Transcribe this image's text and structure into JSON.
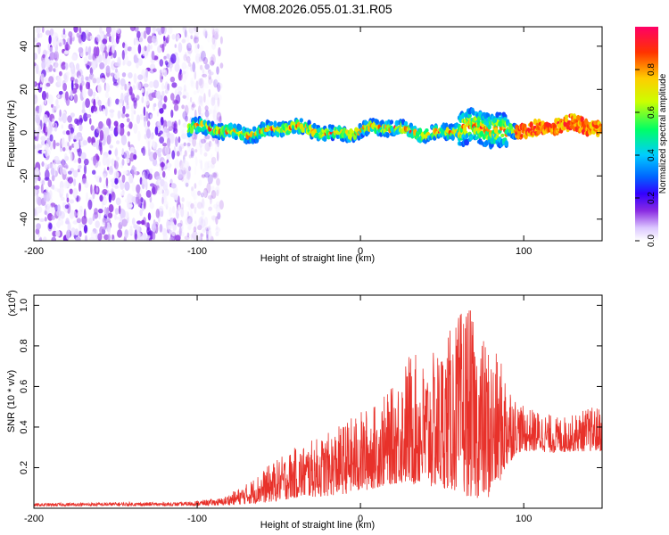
{
  "chart_data": [
    {
      "type": "heatmap",
      "title": "YM08.2026.055.01.31.R05",
      "xlabel": "Height of straight line (km)",
      "ylabel": "Frequency (Hz)",
      "xlim": [
        -200,
        148
      ],
      "ylim": [
        -50,
        49
      ],
      "xticks": [
        -200,
        -100,
        0,
        100
      ],
      "yticks": [
        -40,
        -20,
        0,
        20,
        40
      ],
      "colorbar": {
        "label": "Normalized spectral amplitude",
        "range": [
          0,
          1
        ],
        "ticks": [
          "0.0",
          "0.2",
          "0.4",
          "0.6",
          "0.8"
        ],
        "colors": [
          "#ffffff",
          "#dcc8ff",
          "#8a2be2",
          "#3300ff",
          "#0066ff",
          "#00ccff",
          "#00ff66",
          "#ccff00",
          "#ffcc00",
          "#ff3300",
          "#ff0066"
        ]
      },
      "regions": [
        {
          "name": "scattered noise",
          "x_range": [
            -200,
            -85
          ],
          "freq_range": [
            -50,
            49
          ],
          "amplitude_range": [
            0.02,
            0.25
          ]
        },
        {
          "name": "dominant band",
          "x_range": [
            -105,
            148
          ],
          "center_freq_hz": 1,
          "half_width_hz": 3,
          "amplitude_range": [
            0.3,
            1.0
          ]
        },
        {
          "name": "broadening",
          "x_range": [
            60,
            90
          ],
          "freq_range": [
            -12,
            20
          ]
        }
      ]
    },
    {
      "type": "line",
      "xlabel": "Height of straight line (km)",
      "ylabel": "SNR (10 * v/v)",
      "y_multiplier_label": "(x10",
      "y_multiplier_exp": "4",
      "y_multiplier_close": ")",
      "xlim": [
        -200,
        148
      ],
      "ylim": [
        0,
        1.05
      ],
      "xticks": [
        -200,
        -100,
        0,
        100
      ],
      "yticks": [
        0.2,
        0.4,
        0.6,
        0.8,
        1.0
      ],
      "series_color": "#e8312a",
      "series": [
        {
          "name": "SNR envelope (upper)",
          "x": [
            -200,
            -150,
            -110,
            -85,
            -70,
            -55,
            -40,
            -20,
            0,
            10,
            20,
            30,
            40,
            50,
            60,
            65,
            70,
            80,
            90,
            95,
            100,
            110,
            120,
            130,
            140,
            148
          ],
          "values": [
            0.025,
            0.03,
            0.03,
            0.05,
            0.12,
            0.22,
            0.3,
            0.37,
            0.48,
            0.52,
            0.6,
            0.78,
            0.72,
            0.82,
            0.95,
            1.05,
            0.9,
            0.8,
            0.68,
            0.55,
            0.5,
            0.48,
            0.45,
            0.46,
            0.5,
            0.5
          ]
        },
        {
          "name": "SNR envelope (lower)",
          "x": [
            -200,
            -150,
            -110,
            -85,
            -70,
            -55,
            -40,
            -20,
            0,
            10,
            20,
            30,
            40,
            50,
            60,
            65,
            70,
            80,
            90,
            95,
            100,
            110,
            120,
            130,
            140,
            148
          ],
          "values": [
            0.01,
            0.012,
            0.012,
            0.015,
            0.02,
            0.03,
            0.05,
            0.06,
            0.08,
            0.1,
            0.12,
            0.12,
            0.1,
            0.1,
            0.08,
            0.06,
            0.05,
            0.05,
            0.2,
            0.27,
            0.28,
            0.28,
            0.27,
            0.28,
            0.28,
            0.28
          ]
        }
      ]
    }
  ]
}
